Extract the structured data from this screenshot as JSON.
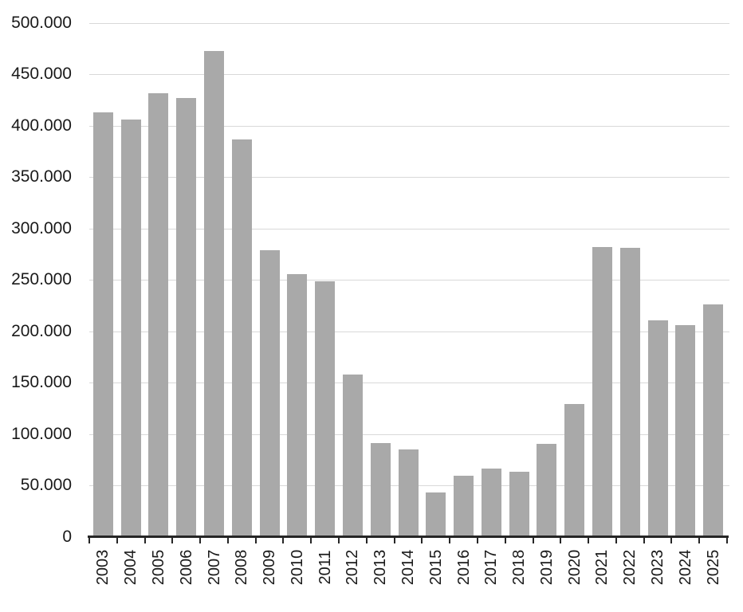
{
  "chart_data": {
    "type": "bar",
    "title": "",
    "xlabel": "",
    "ylabel": "",
    "legend": null,
    "grid": true,
    "categories": [
      "2003",
      "2004",
      "2005",
      "2006",
      "2007",
      "2008",
      "2009",
      "2010",
      "2011",
      "2012",
      "2013",
      "2014",
      "2015",
      "2016",
      "2017",
      "2018",
      "2019",
      "2020",
      "2021",
      "2022",
      "2023",
      "2024",
      "2025"
    ],
    "values": [
      413000,
      406000,
      432000,
      427000,
      473000,
      387000,
      279000,
      256000,
      249000,
      158000,
      91000,
      85000,
      43000,
      59000,
      66000,
      63000,
      90000,
      129000,
      282000,
      281000,
      211000,
      206000,
      226000
    ],
    "ylim": [
      0,
      500000
    ],
    "ytick_interval": 50000,
    "ytick_labels": [
      "0",
      "50.000",
      "100.000",
      "150.000",
      "200.000",
      "250.000",
      "300.000",
      "350.000",
      "400.000",
      "450.000",
      "500.000"
    ],
    "bar_color": "#a9a9a9",
    "gridline_color": "#d9d9d9",
    "axis_color": "#262626",
    "label_color": "#1a1a1a",
    "background_color": "#ffffff"
  }
}
